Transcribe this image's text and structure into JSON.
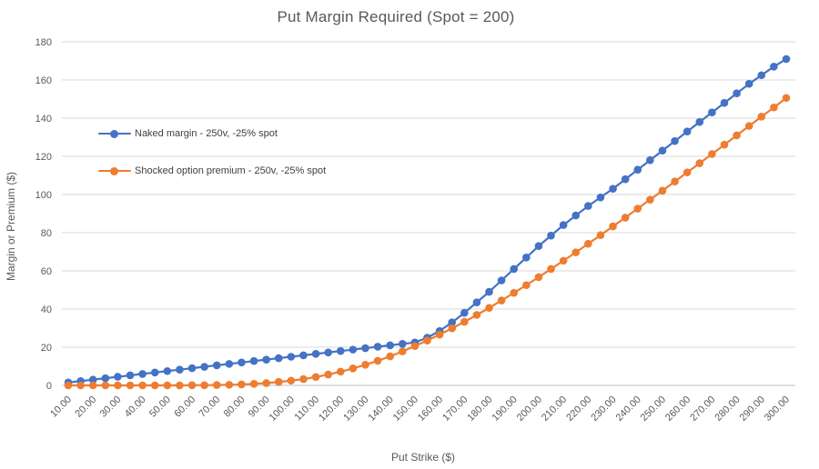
{
  "colors": {
    "series_blue": "#4472C4",
    "series_orange": "#ED7D31",
    "gridline": "#D9D9D9",
    "axis_line": "#BFBFBF",
    "tick_text": "#595959",
    "title_text": "#595959",
    "legend_text": "#404040"
  },
  "chart_data": {
    "type": "line",
    "title": "Put Margin Required (Spot = 200)",
    "xlabel": "Put Strike ($)",
    "ylabel": "Margin or Premium ($)",
    "grid": true,
    "legend_position": "inside-top-left",
    "ylim": [
      0,
      180
    ],
    "y_ticks": [
      0,
      20,
      40,
      60,
      80,
      100,
      120,
      140,
      160,
      180
    ],
    "x": [
      10,
      15,
      20,
      25,
      30,
      35,
      40,
      45,
      50,
      55,
      60,
      65,
      70,
      75,
      80,
      85,
      90,
      95,
      100,
      105,
      110,
      115,
      120,
      125,
      130,
      135,
      140,
      145,
      150,
      155,
      160,
      165,
      170,
      175,
      180,
      185,
      190,
      195,
      200,
      205,
      210,
      215,
      220,
      225,
      230,
      235,
      240,
      245,
      250,
      255,
      260,
      265,
      270,
      275,
      280,
      285,
      290,
      295,
      300
    ],
    "x_tick_labels": [
      "10.00",
      "20.00",
      "30.00",
      "40.00",
      "50.00",
      "60.00",
      "70.00",
      "80.00",
      "90.00",
      "100.00",
      "110.00",
      "120.00",
      "130.00",
      "140.00",
      "150.00",
      "160.00",
      "170.00",
      "180.00",
      "190.00",
      "200.00",
      "210.00",
      "220.00",
      "230.00",
      "240.00",
      "250.00",
      "260.00",
      "270.00",
      "280.00",
      "290.00",
      "300.00"
    ],
    "series": [
      {
        "name": "Naked margin - 250v, -25% spot",
        "color": "#4472C4",
        "values": [
          1.5,
          2.25,
          3,
          3.75,
          4.5,
          5.25,
          6,
          6.75,
          7.5,
          8.25,
          9,
          9.75,
          10.5,
          11.25,
          12,
          12.75,
          13.5,
          14.25,
          15,
          15.75,
          16.5,
          17.25,
          18,
          18.75,
          19.5,
          20.25,
          21,
          21.75,
          22.5,
          25,
          28.5,
          33,
          38,
          43.5,
          49,
          55,
          61,
          67,
          73,
          78.5,
          84,
          89,
          94,
          98.5,
          103,
          108,
          113,
          118,
          123,
          128,
          133,
          138,
          143,
          148,
          153,
          158,
          162.5,
          167,
          171
        ]
      },
      {
        "name": "Shocked option premium - 250v, -25% spot",
        "color": "#ED7D31",
        "values": [
          0,
          0,
          0,
          0,
          0,
          0,
          0,
          0,
          0,
          0,
          0.1,
          0.1,
          0.2,
          0.3,
          0.5,
          0.8,
          1.2,
          1.8,
          2.5,
          3.3,
          4.4,
          5.7,
          7.2,
          8.9,
          10.8,
          12.9,
          15.2,
          17.8,
          20.6,
          23.5,
          26.6,
          29.9,
          33.3,
          36.9,
          40.6,
          44.5,
          48.5,
          52.5,
          56.7,
          61,
          65.3,
          69.7,
          74.2,
          78.7,
          83.3,
          87.9,
          92.6,
          97.3,
          102,
          106.8,
          111.6,
          116.4,
          121.2,
          126.1,
          131,
          135.9,
          140.8,
          145.6,
          150.6
        ]
      }
    ]
  }
}
